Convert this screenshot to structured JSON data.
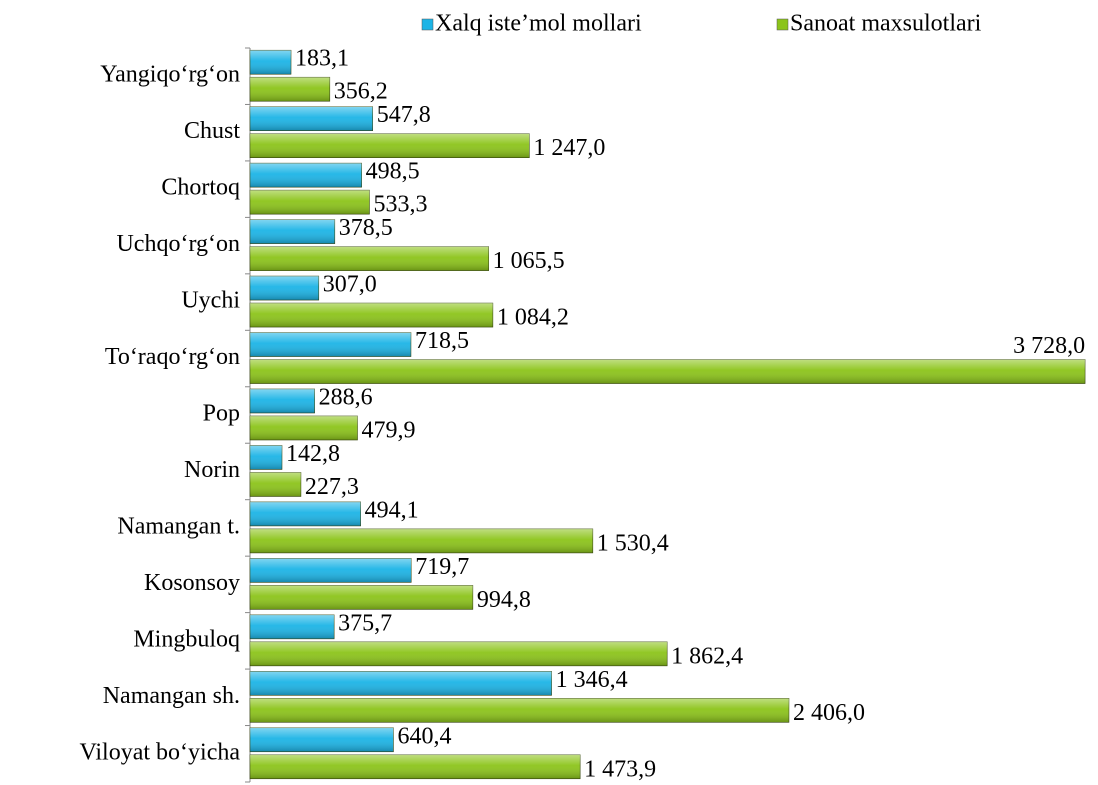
{
  "chart_data": {
    "type": "bar",
    "orientation": "horizontal",
    "categories": [
      "Yangiqo‘rg‘on",
      "Chust",
      "Chortoq",
      "Uchqo‘rg‘on",
      "Uychi",
      "To‘raqo‘rg‘on",
      "Pop",
      "Norin",
      "Namangan t.",
      "Kosonsoy",
      "Mingbuloq",
      "Namangan sh.",
      "Viloyat bo‘yicha"
    ],
    "series": [
      {
        "name": "Xalq iste’mol mollari",
        "color": "#1cb4e6",
        "values": [
          183.1,
          547.8,
          498.5,
          378.5,
          307.0,
          718.5,
          288.6,
          142.8,
          494.1,
          719.7,
          375.7,
          1346.4,
          640.4
        ],
        "value_labels": [
          "183,1",
          "547,8",
          "498,5",
          "378,5",
          "307,0",
          "718,5",
          "288,6",
          "142,8",
          "494,1",
          "719,7",
          "375,7",
          "1 346,4",
          "640,4"
        ]
      },
      {
        "name": "Sanoat maxsulotlari",
        "color": "#8cc41a",
        "values": [
          356.2,
          1247.0,
          533.3,
          1065.5,
          1084.2,
          3728.0,
          479.9,
          227.3,
          1530.4,
          994.8,
          1862.4,
          2406.0,
          1473.9
        ],
        "value_labels": [
          "356,2",
          "1 247,0",
          "533,3",
          "1 065,5",
          "1 084,2",
          "3 728,0",
          "479,9",
          "227,3",
          "1 530,4",
          "994,8",
          "1 862,4",
          "2 406,0",
          "1 473,9"
        ]
      }
    ],
    "xlim": [
      0,
      3750
    ],
    "legend": "top"
  }
}
